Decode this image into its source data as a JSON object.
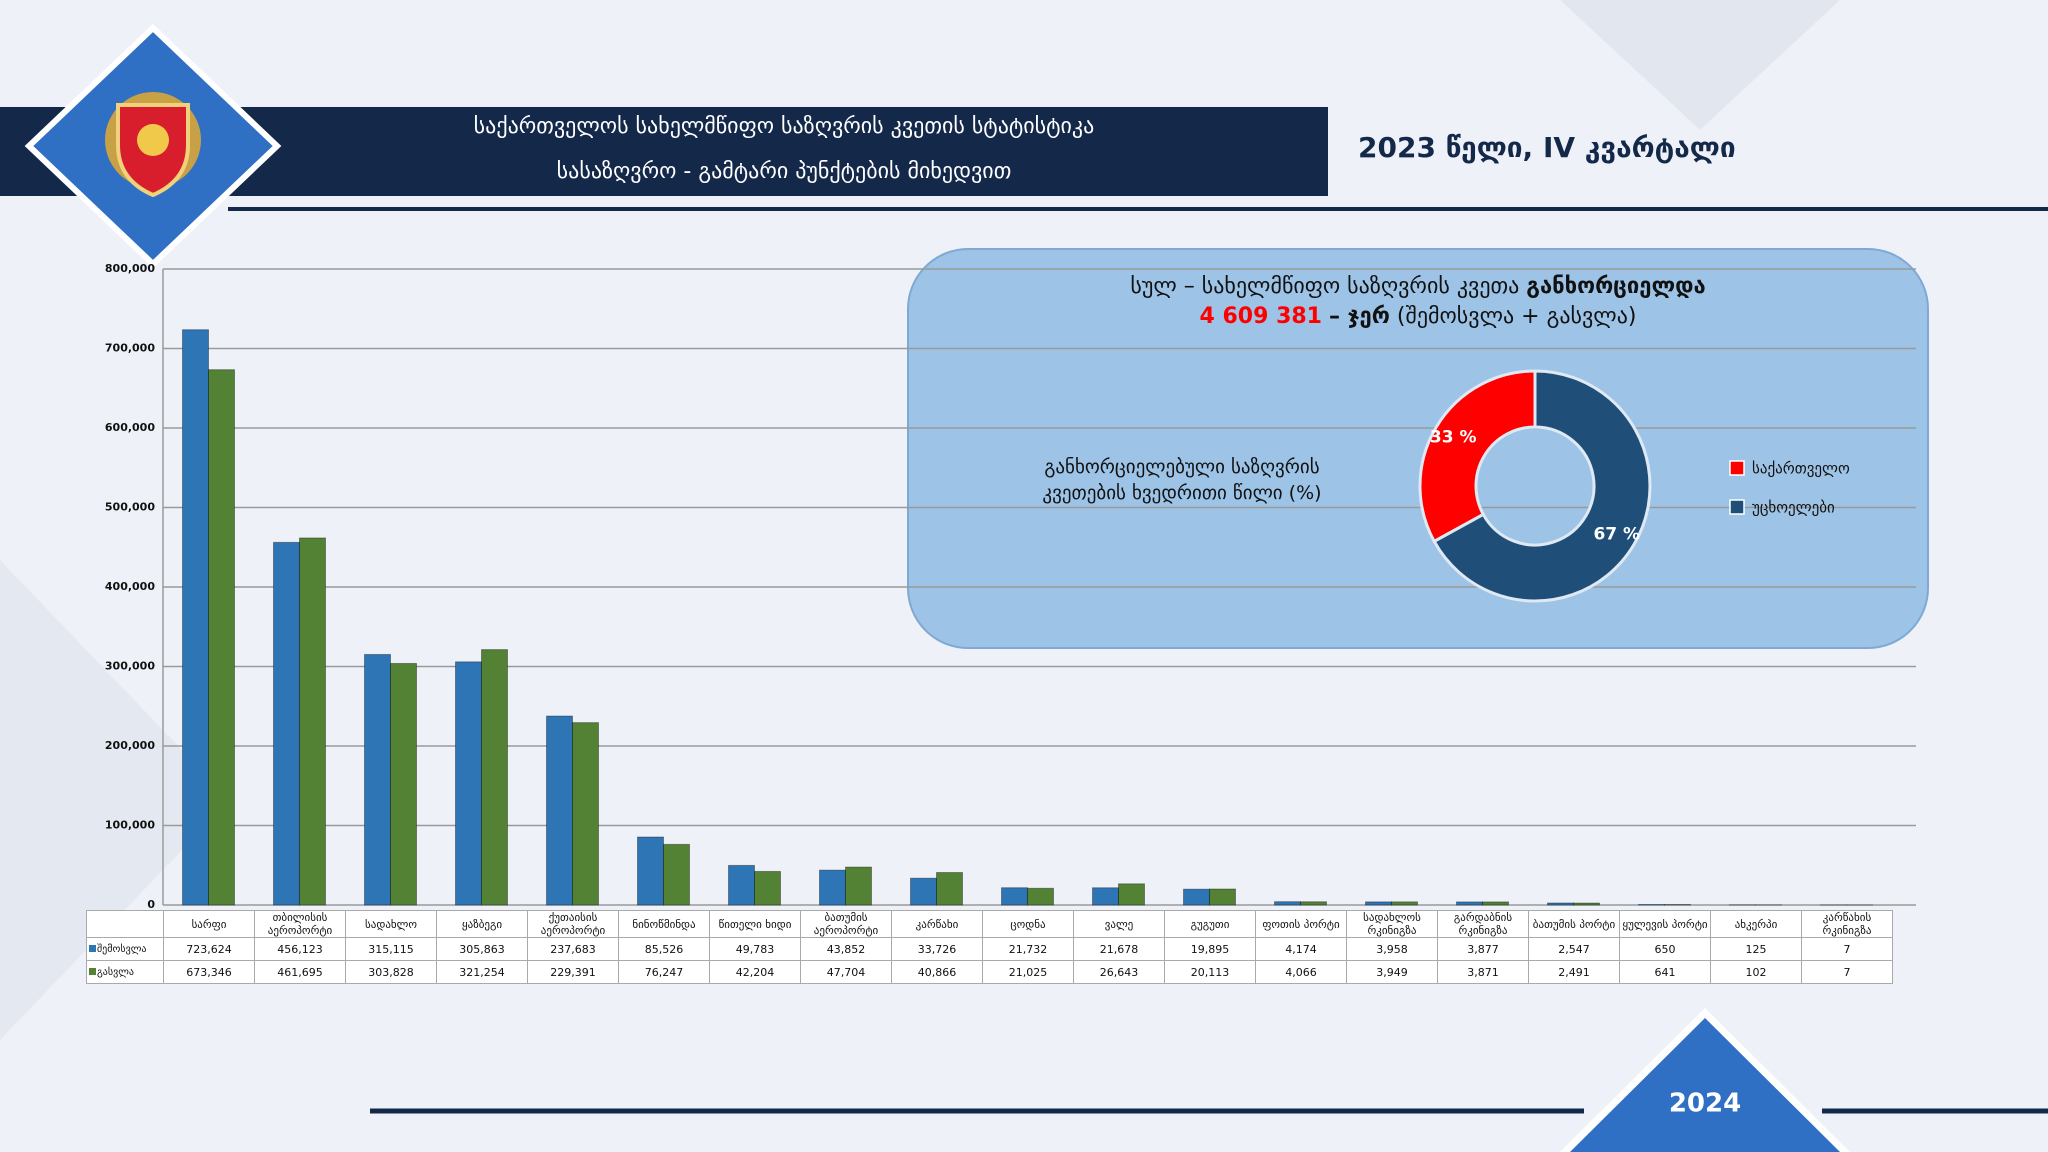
{
  "header": {
    "title_line1": "საქართველოს სახელმწიფო საზღვრის კვეთის სტატისტიკა",
    "title_line2": "სასაზღვრო - გამტარი პუნქტების მიხედვით",
    "period": "2023 წელი, IV კვარტალი",
    "footer_year": "2024"
  },
  "summary": {
    "text": "სულ – სახელმწიფო საზღვრის კვეთა",
    "emphasis": "განხორციელდა",
    "total": "4 609 381",
    "unit": "– ჯერ",
    "note": "(შემოსვლა + გასვლა)"
  },
  "chart_data": [
    {
      "type": "bar",
      "categories": [
        "სარფი",
        "თბილისის აეროპორტი",
        "სადახლო",
        "ყაზბეგი",
        "ქუთაისის აეროპორტი",
        "ნინოწმინდა",
        "წითელი ხიდი",
        "ბათუმის აეროპორტი",
        "კარწახი",
        "ცოდნა",
        "ვალე",
        "გუგუთი",
        "ფოთის პორტი",
        "სადახლოს რკინიგზა",
        "გარდაბნის რკინიგზა",
        "ბათუმის პორტი",
        "ყულევის პორტი",
        "ახკერპი",
        "კარწახის რკინიგზა"
      ],
      "series": [
        {
          "name": "შემოსვლა",
          "color": "#2e75b6",
          "values": [
            723624,
            456123,
            315115,
            305863,
            237683,
            85526,
            49783,
            43852,
            33726,
            21732,
            21678,
            19895,
            4174,
            3958,
            3877,
            2547,
            650,
            125,
            7
          ],
          "value_labels": [
            "723,624",
            "456,123",
            "315,115",
            "305,863",
            "237,683",
            "85,526",
            "49,783",
            "43,852",
            "33,726",
            "21,732",
            "21,678",
            "19,895",
            "4,174",
            "3,958",
            "3,877",
            "2,547",
            "650",
            "125",
            "7"
          ]
        },
        {
          "name": "გასვლა",
          "color": "#548235",
          "values": [
            673346,
            461695,
            303828,
            321254,
            229391,
            76247,
            42204,
            47704,
            40866,
            21025,
            26643,
            20113,
            4066,
            3949,
            3871,
            2491,
            641,
            102,
            7
          ],
          "value_labels": [
            "673,346",
            "461,695",
            "303,828",
            "321,254",
            "229,391",
            "76,247",
            "42,204",
            "47,704",
            "40,866",
            "21,025",
            "26,643",
            "20,113",
            "4,066",
            "3,949",
            "3,871",
            "2,491",
            "641",
            "102",
            "7"
          ]
        }
      ],
      "ylim": [
        0,
        800000
      ],
      "yticks": [
        0,
        {
          "value": 100000,
          "label": "100,000"
        },
        {
          "value": 200000,
          "label": "200,000"
        },
        {
          "value": 300000,
          "label": "300,000"
        },
        {
          "value": 400000,
          "label": "400,000"
        },
        {
          "value": 500000,
          "label": "500,000"
        },
        {
          "value": 600000,
          "label": "600,000"
        },
        {
          "value": 700000,
          "label": "700,000"
        },
        {
          "value": 800000,
          "label": "800,000"
        }
      ],
      "grid": true
    },
    {
      "type": "pie",
      "title": "განხორციელებული საზღვრის კვეთების ხვედრითი წილი (%)",
      "categories": [
        "საქართველო",
        "უცხოელები"
      ],
      "values": [
        33,
        67
      ],
      "value_labels": [
        "33 %",
        "67 %"
      ],
      "colors": [
        "#ff0000",
        "#1f4e79"
      ],
      "hole": true
    }
  ]
}
